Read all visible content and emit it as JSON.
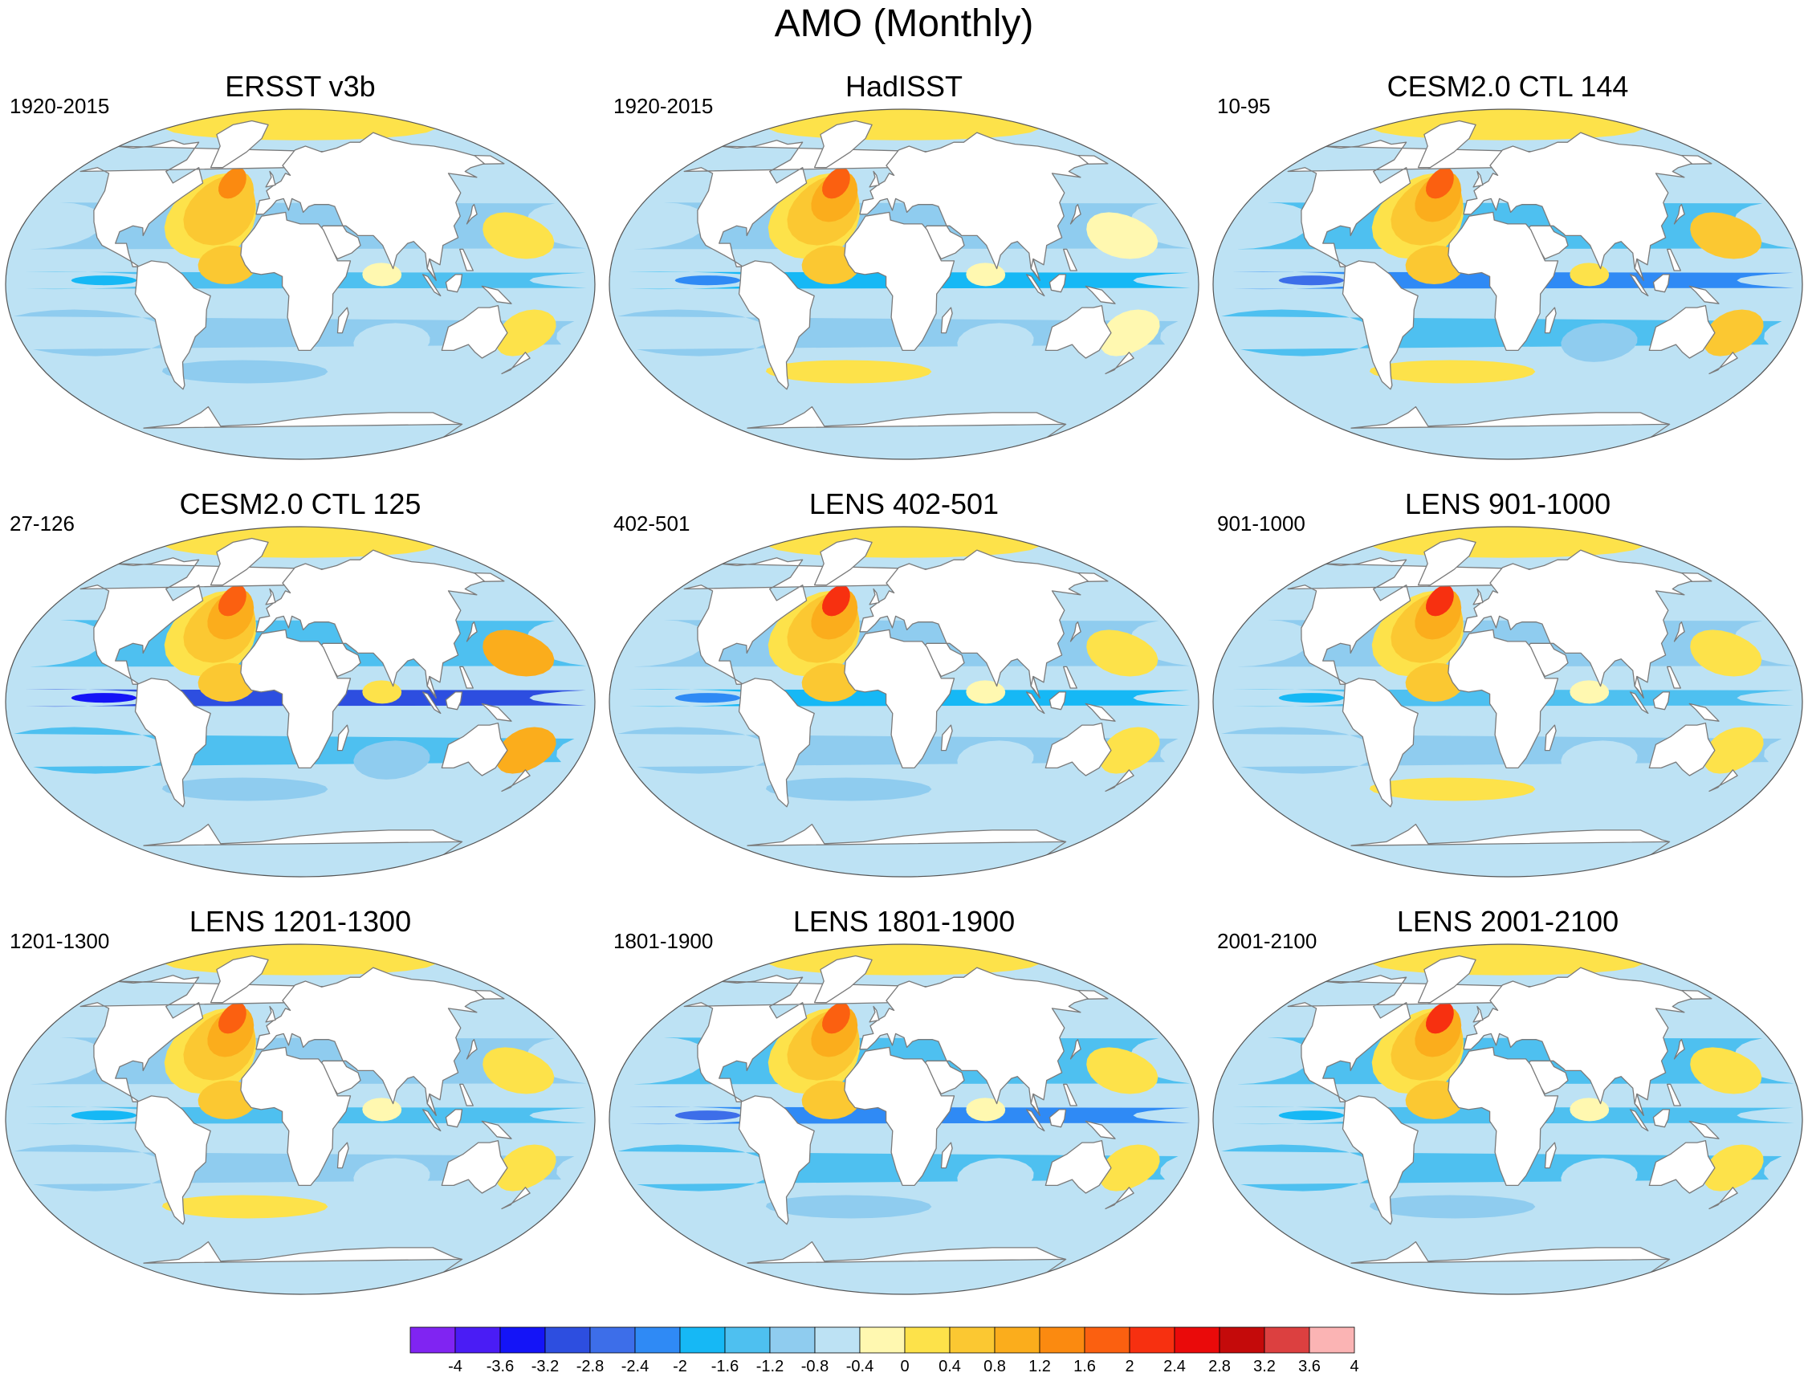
{
  "figure": {
    "title": "AMO (Monthly)"
  },
  "panels": [
    {
      "title": "ERSST v3b",
      "subtitle": "1920-2015",
      "pattern": {
        "natl": 1.8,
        "pac": -0.6,
        "pacEq": -1.0,
        "so": -0.7,
        "io": -0.4,
        "wpac": 0.4
      }
    },
    {
      "title": "HadISST",
      "subtitle": "1920-2015",
      "pattern": {
        "natl": 2.0,
        "pac": -0.5,
        "pacEq": -1.3,
        "so": 0.4,
        "io": -0.3,
        "wpac": 0.3
      }
    },
    {
      "title": "CESM2.0 CTL 144",
      "subtitle": "10-95",
      "pattern": {
        "natl": 2.2,
        "pac": -1.2,
        "pacEq": -2.0,
        "so": 0.5,
        "io": -0.8,
        "wpac": 1.0
      }
    },
    {
      "title": "CESM2.0 CTL 125",
      "subtitle": "27-126",
      "pattern": {
        "natl": 2.2,
        "pac": -1.2,
        "pacEq": -2.6,
        "so": -0.6,
        "io": -0.8,
        "wpac": 1.2
      }
    },
    {
      "title": "LENS 402-501",
      "subtitle": "402-501",
      "pattern": {
        "natl": 2.4,
        "pac": -0.8,
        "pacEq": -1.4,
        "so": -0.5,
        "io": -0.4,
        "wpac": 0.5
      }
    },
    {
      "title": "LENS 901-1000",
      "subtitle": "901-1000",
      "pattern": {
        "natl": 2.6,
        "pac": -0.7,
        "pacEq": -0.9,
        "so": 0.5,
        "io": -0.4,
        "wpac": 0.5
      }
    },
    {
      "title": "LENS 1201-1300",
      "subtitle": "1201-1300",
      "pattern": {
        "natl": 2.3,
        "pac": -0.8,
        "pacEq": -1.0,
        "so": 0.4,
        "io": -0.3,
        "wpac": 0.6
      }
    },
    {
      "title": "LENS 1801-1900",
      "subtitle": "1801-1900",
      "pattern": {
        "natl": 2.2,
        "pac": -1.2,
        "pacEq": -1.8,
        "so": -0.6,
        "io": -0.3,
        "wpac": 0.7
      }
    },
    {
      "title": "LENS 2001-2100",
      "subtitle": "2001-2100",
      "pattern": {
        "natl": 2.4,
        "pac": -0.9,
        "pacEq": -1.2,
        "so": -0.6,
        "io": -0.4,
        "wpac": 0.6
      }
    }
  ],
  "colorbar": {
    "labels": [
      "-4",
      "-3.6",
      "-3.2",
      "-2.8",
      "-2.4",
      "-2",
      "-1.6",
      "-1.2",
      "-0.8",
      "-0.4",
      "0",
      "0.4",
      "0.8",
      "1.2",
      "1.6",
      "2",
      "2.4",
      "2.8",
      "3.2",
      "3.6",
      "4"
    ],
    "levels": [
      -4,
      -3.6,
      -3.2,
      -2.8,
      -2.4,
      -2,
      -1.6,
      -1.2,
      -0.8,
      -0.4,
      0,
      0.4,
      0.8,
      1.2,
      1.6,
      2,
      2.4,
      2.8,
      3.2,
      3.6,
      4
    ],
    "colors": [
      "#8024f2",
      "#4a1cf5",
      "#1414f7",
      "#2d4ee0",
      "#3d6ee9",
      "#2f8af5",
      "#16b8f5",
      "#4ec0f0",
      "#8fccef",
      "#bde2f4",
      "#fff8b0",
      "#fde24a",
      "#fbc832",
      "#fbad1c",
      "#fb8a10",
      "#fb6010",
      "#f73010",
      "#ea0a0a",
      "#c40a0a",
      "#dc4040",
      "#fbb4b4"
    ]
  },
  "colors": {
    "land": "#ffffff",
    "coast": "#7a7a7a",
    "border": "#555555"
  }
}
